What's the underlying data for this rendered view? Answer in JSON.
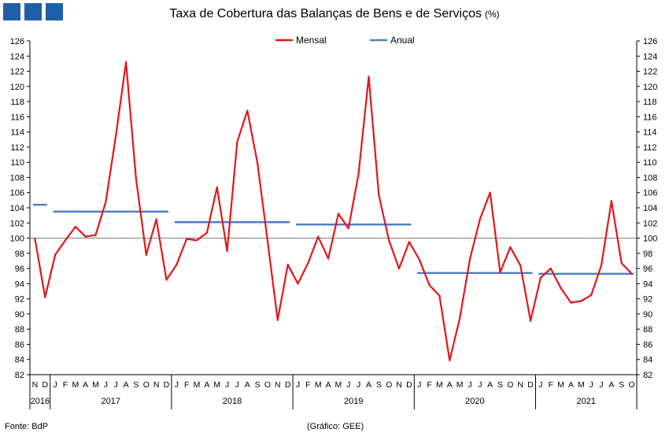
{
  "header": {
    "logo_icon": "bdp-three-squares-logo",
    "logo_color": "#1f5faa"
  },
  "chart_data": {
    "type": "line",
    "title": "Taxa de Cobertura das Balanças de Bens e de Serviços",
    "title_unit": "(%)",
    "ylim": [
      82,
      126
    ],
    "yticks": [
      82,
      84,
      86,
      88,
      90,
      92,
      94,
      96,
      98,
      100,
      102,
      104,
      106,
      108,
      110,
      112,
      114,
      116,
      118,
      120,
      122,
      124,
      126
    ],
    "reference_line": 100,
    "grid": false,
    "legend_position": "top-center",
    "month_labels": [
      "N",
      "D",
      "J",
      "F",
      "M",
      "A",
      "M",
      "J",
      "J",
      "A",
      "S",
      "O",
      "N",
      "D",
      "J",
      "F",
      "M",
      "A",
      "M",
      "J",
      "J",
      "A",
      "S",
      "O",
      "N",
      "D",
      "J",
      "F",
      "M",
      "A",
      "M",
      "J",
      "J",
      "A",
      "S",
      "O",
      "N",
      "D",
      "J",
      "F",
      "M",
      "A",
      "M",
      "J",
      "J",
      "A",
      "S",
      "O",
      "N",
      "D",
      "J",
      "F",
      "M",
      "A",
      "M",
      "J",
      "J",
      "A",
      "S",
      "O"
    ],
    "year_labels": [
      {
        "label": "2016",
        "start": 0,
        "end": 1
      },
      {
        "label": "2017",
        "start": 2,
        "end": 13
      },
      {
        "label": "2018",
        "start": 14,
        "end": 25
      },
      {
        "label": "2019",
        "start": 26,
        "end": 37
      },
      {
        "label": "2020",
        "start": 38,
        "end": 49
      },
      {
        "label": "2021",
        "start": 50,
        "end": 59
      }
    ],
    "series": [
      {
        "name": "Mensal",
        "color": "#e3161c",
        "values": [
          99.9,
          92.2,
          97.8,
          99.7,
          101.5,
          100.2,
          100.4,
          104.8,
          113.5,
          123.2,
          107.8,
          97.8,
          102.5,
          94.5,
          96.5,
          99.9,
          99.7,
          100.7,
          106.7,
          98.3,
          112.7,
          116.8,
          109.9,
          99.6,
          89.2,
          96.5,
          94.0,
          96.7,
          100.2,
          97.3,
          103.2,
          101.3,
          108.5,
          121.3,
          105.7,
          99.7,
          96.0,
          99.5,
          97.2,
          93.8,
          92.4,
          83.9,
          89.4,
          97.2,
          102.5,
          106.0,
          95.5,
          98.8,
          96.4,
          89.1,
          94.8,
          96.0,
          93.4,
          91.5,
          91.7,
          92.5,
          96.4,
          104.9,
          96.7,
          95.3
        ]
      },
      {
        "name": "Anual",
        "color": "#4f81bd",
        "segments": [
          {
            "start": 0,
            "end": 1,
            "value": 104.4
          },
          {
            "start": 2,
            "end": 13,
            "value": 103.5
          },
          {
            "start": 14,
            "end": 25,
            "value": 102.1
          },
          {
            "start": 26,
            "end": 37,
            "value": 101.8
          },
          {
            "start": 38,
            "end": 49,
            "value": 95.4
          },
          {
            "start": 50,
            "end": 59,
            "value": 95.3
          }
        ]
      }
    ]
  },
  "footer": {
    "source": "Fonte: BdP",
    "credit": "(Gráfico: GEE)"
  }
}
